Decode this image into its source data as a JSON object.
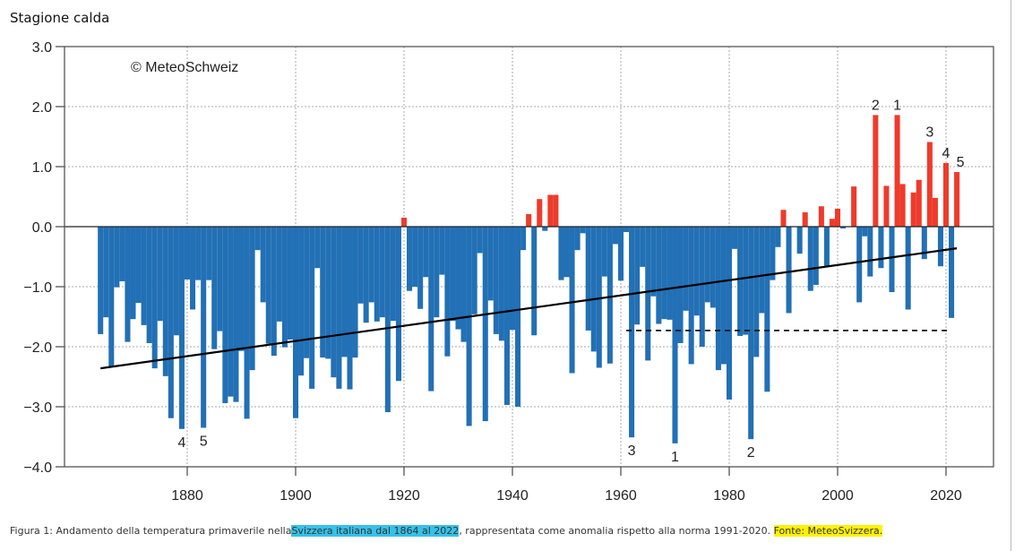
{
  "page": {
    "title": "Stagione calda",
    "caption": {
      "prefix": "Figura 1: Andamento della temperatura primaverile nella",
      "highlight_region": "Svizzera italiana dal 1864 al 2022",
      "middle": ", rappresentata come anomalia rispetto alla norma 1991-2020. ",
      "highlight_source": "Fonte: MeteoSvizzera."
    }
  },
  "colors": {
    "positive": "#ee3b2b",
    "negative": "#2270b5",
    "highlight_region": "#35c2ea",
    "highlight_source": "#fff200",
    "rank4": "#d2609a"
  },
  "chart_data": {
    "type": "bar",
    "title": "",
    "credit": "© MeteoSchweiz",
    "xlabel": "",
    "ylabel": "",
    "xlim": [
      1857,
      2030
    ],
    "ylim": [
      -4.0,
      3.0
    ],
    "yticks": [
      "3.0",
      "2.0",
      "1.0",
      "0.0",
      "-1.0",
      "-2.0",
      "-3.0",
      "-4.0"
    ],
    "ytick_values": [
      3,
      2,
      1,
      0,
      -1,
      -2,
      -3,
      -4
    ],
    "xticks": [
      "1880",
      "1900",
      "1920",
      "1940",
      "1960",
      "1980",
      "2000",
      "2020"
    ],
    "xtick_values": [
      1880,
      1900,
      1920,
      1940,
      1960,
      1980,
      2000,
      2020
    ],
    "grid": true,
    "x_start": 1864,
    "values": [
      -1.79,
      -1.51,
      -2.33,
      -1.01,
      -0.91,
      -1.92,
      -1.54,
      -1.27,
      -1.64,
      -1.94,
      -2.36,
      -1.57,
      -2.49,
      -3.19,
      -1.81,
      -3.37,
      -0.88,
      -1.38,
      -0.89,
      -3.35,
      -0.89,
      -2.04,
      -1.74,
      -2.94,
      -2.83,
      -2.92,
      -2.07,
      -3.2,
      -2.39,
      -0.39,
      -1.26,
      -1.95,
      -2.15,
      -1.58,
      -2.01,
      -1.88,
      -3.19,
      -2.48,
      -2.19,
      -2.7,
      -0.69,
      -2.18,
      -2.2,
      -2.51,
      -2.7,
      -2.17,
      -2.71,
      -2.18,
      -1.28,
      -1.6,
      -1.26,
      -1.58,
      -1.51,
      -3.09,
      -1.57,
      -2.57,
      0.15,
      -1.07,
      -1.0,
      -1.37,
      -0.84,
      -2.74,
      -1.51,
      -0.8,
      -2.16,
      -1.57,
      -1.71,
      -1.92,
      -3.32,
      -1.46,
      -0.44,
      -3.24,
      -1.23,
      -1.79,
      -1.9,
      -2.97,
      -1.72,
      -3.0,
      -0.39,
      0.21,
      -1.81,
      0.46,
      -0.07,
      0.53,
      0.53,
      -0.89,
      -0.84,
      -2.44,
      -0.39,
      -0.11,
      -1.73,
      -2.08,
      -2.35,
      -0.83,
      -2.28,
      -0.29,
      -0.9,
      -0.09,
      -3.51,
      -1.63,
      -0.67,
      -2.23,
      -1.16,
      -1.62,
      -1.54,
      -1.55,
      -3.61,
      -1.94,
      -1.4,
      -2.29,
      -1.48,
      -2.0,
      -1.26,
      -1.35,
      -2.39,
      -2.29,
      -2.88,
      -0.37,
      -1.82,
      -1.8,
      -3.54,
      -2.17,
      -1.44,
      -2.75,
      -0.89,
      -0.34,
      0.28,
      -1.44,
      0.0,
      -0.45,
      0.24,
      -1.07,
      -0.97,
      0.34,
      -0.65,
      0.13,
      0.3,
      -0.03,
      0.0,
      0.67,
      -1.26,
      -0.16,
      -0.83,
      1.86,
      -0.69,
      0.68,
      -1.09,
      1.86,
      0.71,
      -1.38,
      0.57,
      0.78,
      -0.54,
      1.41,
      0.48,
      -0.66,
      1.06,
      -1.52,
      0.91
    ],
    "trend_line": {
      "x": [
        1864,
        2022
      ],
      "y": [
        -2.36,
        -0.36
      ],
      "style": "solid"
    },
    "reference_line": {
      "x": [
        1961,
        2021
      ],
      "y": [
        -1.73,
        -1.73
      ],
      "style": "dashed"
    },
    "annotations": [
      {
        "text": "4",
        "x": 1879,
        "position": "below"
      },
      {
        "text": "5",
        "x": 1883,
        "position": "below"
      },
      {
        "text": "3",
        "x": 1962,
        "position": "below"
      },
      {
        "text": "1",
        "x": 1970,
        "position": "below"
      },
      {
        "text": "2",
        "x": 1984,
        "position": "below"
      },
      {
        "text": "2",
        "x": 2007,
        "position": "above"
      },
      {
        "text": "1",
        "x": 2011,
        "position": "above"
      },
      {
        "text": "3",
        "x": 2017,
        "position": "above"
      },
      {
        "text": "4",
        "x": 2020,
        "position": "above",
        "highlight": true
      },
      {
        "text": "5",
        "x": 2022,
        "position": "above"
      }
    ]
  }
}
